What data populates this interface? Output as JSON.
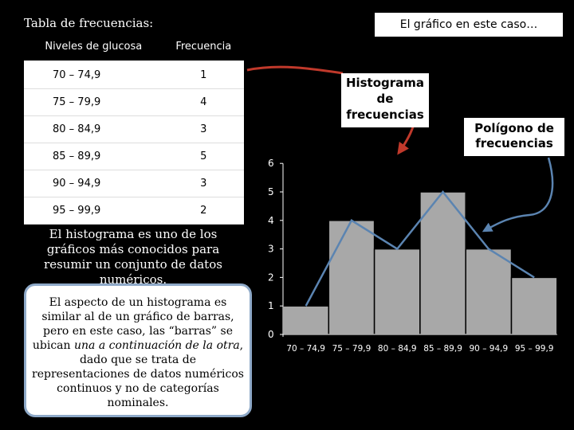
{
  "header": {
    "left_title": "Tabla de frecuencias:",
    "right_title": "El gráfico en este caso…"
  },
  "table": {
    "columns": [
      "Niveles de glucosa",
      "Frecuencia"
    ],
    "rows": [
      [
        "70 – 74,9",
        "1"
      ],
      [
        "75 – 79,9",
        "4"
      ],
      [
        "80 – 84,9",
        "3"
      ],
      [
        "85 – 89,9",
        "5"
      ],
      [
        "90 – 94,9",
        "3"
      ],
      [
        "95 – 99,9",
        "2"
      ]
    ]
  },
  "text": {
    "histogram_prefix": "El ",
    "histogram_word": "histograma",
    "histogram_suffix": " es uno de los gráficos más conocidos para resumir un conjunto de datos numéricos.",
    "note_1": "El aspecto de un histograma es similar al de un gráfico de barras, pero en este caso, las “barras” se ubican ",
    "note_italic": "una a continuación de la otra",
    "note_2": ", dado que se trata de representaciones de datos numéricos continuos y no de categorías nominales."
  },
  "callouts": {
    "histogram": "Histograma de frecuencias",
    "polygon": "Polígono de frecuencias"
  },
  "colors": {
    "bar_fill": "#a8a8a8",
    "polygon_line": "#5b84b1",
    "arrow_red": "#c0392b",
    "note_border": "#8ea9c8"
  },
  "chart_data": {
    "type": "bar",
    "categories": [
      "70 – 74,9",
      "75 – 79,9",
      "80 – 84,9",
      "85 – 89,9",
      "90 – 94,9",
      "95 – 99,9"
    ],
    "values": [
      1,
      4,
      3,
      5,
      3,
      2
    ],
    "ylim": [
      0,
      6
    ],
    "yticks": [
      "0",
      "1",
      "2",
      "3",
      "4",
      "5",
      "6"
    ],
    "grid": false,
    "polygon_overlay": true
  }
}
